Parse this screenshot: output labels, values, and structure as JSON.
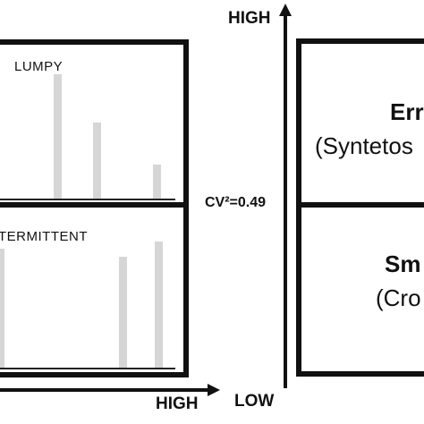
{
  "left_panel": {
    "top_label": "LUMPY",
    "bottom_label": "TERMITTENT",
    "x_axis_label": "HIGH"
  },
  "middle_axis": {
    "top_label": "HIGH",
    "bottom_label": "LOW",
    "threshold_label": "CV²=0.49"
  },
  "right_panel": {
    "top_title": "Err",
    "top_subtitle": "(Syntetos",
    "bottom_title": "Sm",
    "bottom_subtitle": "(Cro"
  },
  "colors": {
    "line": "#111111",
    "bar": "#d6d6d6"
  }
}
